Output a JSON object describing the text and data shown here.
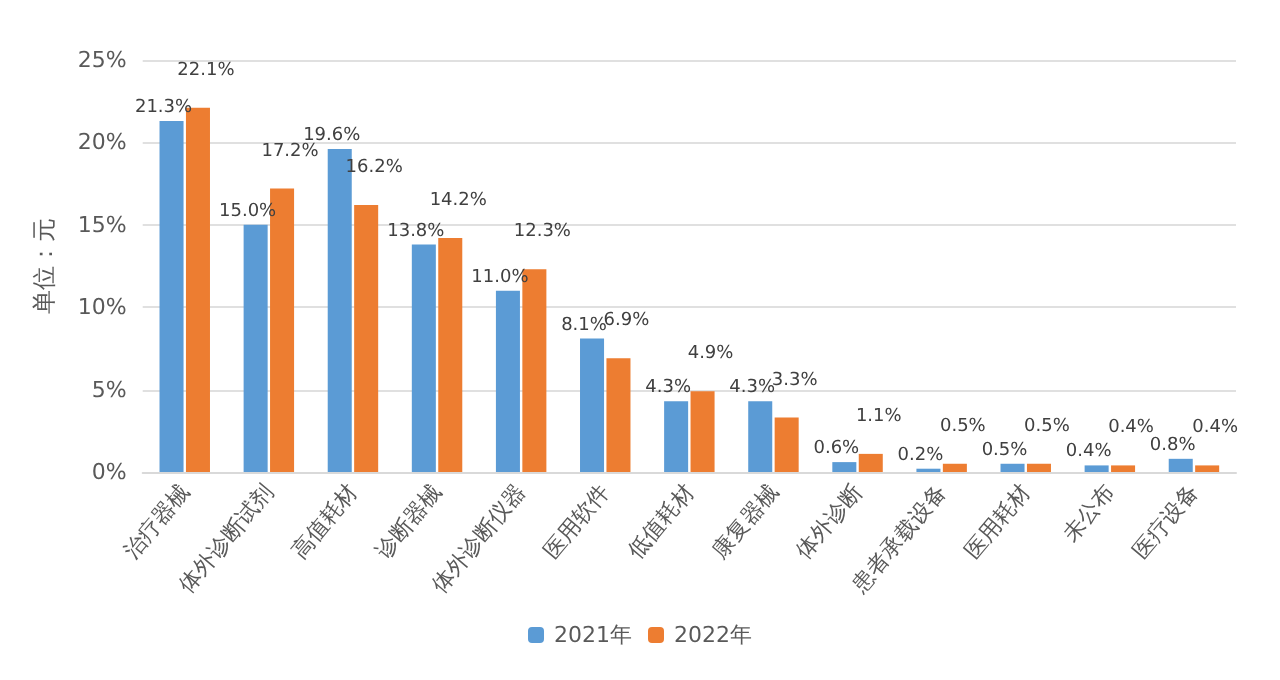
{
  "chart_data": {
    "type": "bar",
    "ylabel": "单位：元",
    "categories": [
      "治疗器械",
      "体外诊断试剂",
      "高值耗材",
      "诊断器械",
      "体外诊断仪器",
      "医用软件",
      "低值耗材",
      "康复器械",
      "体外诊断",
      "患者承载设备",
      "医用耗材",
      "未公布",
      "医疗设备"
    ],
    "series": [
      {
        "name": "2021年",
        "color": "#5b9bd5",
        "values": [
          21.3,
          15.0,
          19.6,
          13.8,
          11.0,
          8.1,
          4.3,
          4.3,
          0.6,
          0.2,
          0.5,
          0.4,
          0.8
        ],
        "value_labels": [
          "21.3%",
          "15.0%",
          "19.6%",
          "13.8%",
          "11.0%",
          "8.1%",
          "4.3%",
          "4.3%",
          "0.6%",
          "0.2%",
          "0.5%",
          "0.4%",
          "0.8%"
        ]
      },
      {
        "name": "2022年",
        "color": "#ed7d31",
        "values": [
          22.1,
          17.2,
          16.2,
          14.2,
          12.3,
          6.9,
          4.9,
          3.3,
          1.1,
          0.5,
          0.5,
          0.4,
          0.4
        ],
        "value_labels": [
          "22.1%",
          "17.2%",
          "16.2%",
          "14.2%",
          "12.3%",
          "6.9%",
          "4.9%",
          "3.3%",
          "1.1%",
          "0.5%",
          "0.5%",
          "0.4%",
          "0.4%"
        ]
      }
    ],
    "ylim": [
      0,
      25
    ],
    "yticks": [
      {
        "value": 0,
        "label": "0%"
      },
      {
        "value": 5,
        "label": "5%"
      },
      {
        "value": 10,
        "label": "10%"
      },
      {
        "value": 15,
        "label": "15%"
      },
      {
        "value": 20,
        "label": "20%"
      },
      {
        "value": 25,
        "label": "25%"
      }
    ],
    "grid": "y",
    "legend": "bottom"
  }
}
